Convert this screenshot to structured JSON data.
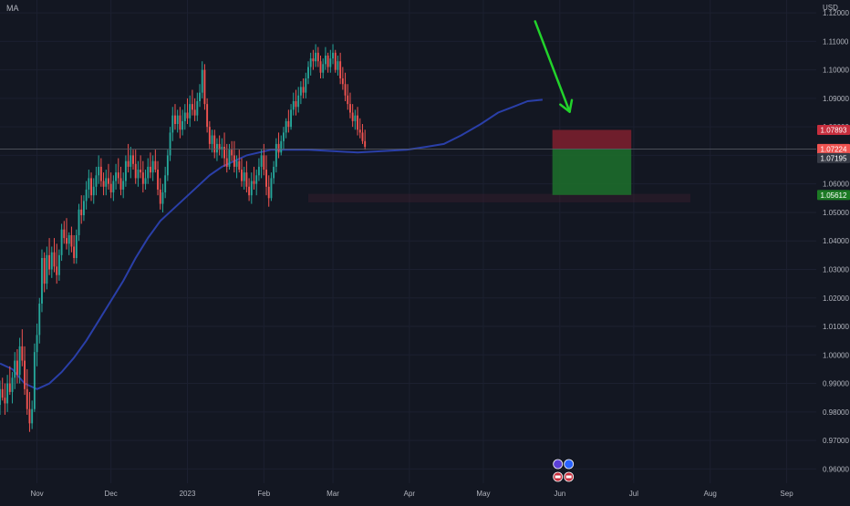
{
  "indicator_label": "MA",
  "currency_label": "USD",
  "colors": {
    "background": "#131722",
    "grid": "#1c2030",
    "up": "#26a69a",
    "down": "#ef5350",
    "ma": "#2a3fa8",
    "arrow": "#22d32b",
    "stop_zone": "#7a1f2e",
    "target_zone": "#1d6b2b",
    "axis_text": "#b2b5be"
  },
  "chart_data": {
    "type": "candlestick",
    "title": "",
    "xlabel": "",
    "ylabel": "",
    "ylim": [
      0.955,
      1.1245
    ],
    "y_ticks": [
      "1.12000",
      "1.11000",
      "1.10000",
      "1.09000",
      "1.08000",
      "1.07000",
      "1.06000",
      "1.05000",
      "1.04000",
      "1.03000",
      "1.02000",
      "1.01000",
      "1.00000",
      "0.99000",
      "0.98000",
      "0.97000",
      "0.96000"
    ],
    "x_ticks": [
      {
        "label": "Nov",
        "day": 0
      },
      {
        "label": "Dec",
        "day": 30
      },
      {
        "label": "2023",
        "day": 61
      },
      {
        "label": "Feb",
        "day": 92
      },
      {
        "label": "Mar",
        "day": 120
      },
      {
        "label": "Apr",
        "day": 151
      },
      {
        "label": "May",
        "day": 181
      },
      {
        "label": "Jun",
        "day": 212
      },
      {
        "label": "Jul",
        "day": 242
      },
      {
        "label": "Aug",
        "day": 273
      },
      {
        "label": "Sep",
        "day": 304
      }
    ],
    "x_range_days": [
      -15,
      316
    ],
    "price_labels": [
      {
        "value": "1.07893",
        "price": 1.07893,
        "color": "#c62e3d"
      },
      {
        "value": "1.07224",
        "price": 1.07224,
        "color": "#ef5350"
      },
      {
        "value": "1.07195",
        "price": 1.07195,
        "color": "#363a45"
      },
      {
        "value": "1.05612",
        "price": 1.05612,
        "color": "#1c7a24"
      }
    ],
    "position": {
      "type": "short",
      "entry": 1.07224,
      "stop": 1.07893,
      "target": 1.05612,
      "start_day": 209,
      "end_day": 241
    },
    "support_zone": {
      "from_day": 110,
      "to_day": 265,
      "low": 1.0535,
      "high": 1.0565
    },
    "arrow": {
      "from_day": 202,
      "from_price": 1.117,
      "to_day": 216,
      "to_price": 1.0853
    },
    "ma_series": [
      [
        -15,
        0.997
      ],
      [
        -10,
        0.995
      ],
      [
        -5,
        0.99
      ],
      [
        0,
        0.988
      ],
      [
        5,
        0.99
      ],
      [
        10,
        0.994
      ],
      [
        15,
        0.999
      ],
      [
        20,
        1.005
      ],
      [
        25,
        1.012
      ],
      [
        30,
        1.019
      ],
      [
        35,
        1.026
      ],
      [
        40,
        1.034
      ],
      [
        45,
        1.041
      ],
      [
        50,
        1.047
      ],
      [
        55,
        1.051
      ],
      [
        60,
        1.055
      ],
      [
        65,
        1.059
      ],
      [
        70,
        1.063
      ],
      [
        75,
        1.066
      ],
      [
        80,
        1.068
      ],
      [
        85,
        1.07
      ],
      [
        90,
        1.071
      ],
      [
        95,
        1.072
      ],
      [
        100,
        1.072
      ],
      [
        110,
        1.072
      ],
      [
        120,
        1.0715
      ],
      [
        130,
        1.071
      ],
      [
        140,
        1.0715
      ],
      [
        150,
        1.072
      ],
      [
        158,
        1.073
      ],
      [
        165,
        1.074
      ],
      [
        172,
        1.077
      ],
      [
        180,
        1.081
      ],
      [
        187,
        1.085
      ],
      [
        193,
        1.087
      ],
      [
        199,
        1.089
      ],
      [
        205,
        1.0895
      ]
    ],
    "candles": [
      [
        -15,
        0.9825,
        0.991,
        0.979,
        0.988
      ],
      [
        -14,
        0.988,
        0.992,
        0.984,
        0.985
      ],
      [
        -13,
        0.985,
        0.99,
        0.979,
        0.983
      ],
      [
        -12,
        0.983,
        0.993,
        0.98,
        0.99
      ],
      [
        -11,
        0.99,
        0.996,
        0.986,
        0.987
      ],
      [
        -10,
        0.987,
        0.994,
        0.983,
        0.992
      ],
      [
        -9,
        0.992,
        1.001,
        0.988,
        0.998
      ],
      [
        -8,
        0.998,
        1.002,
        0.99,
        0.993
      ],
      [
        -7,
        0.993,
        1.006,
        0.99,
        1.003
      ],
      [
        -6,
        1.003,
        1.009,
        0.996,
        0.998
      ],
      [
        -5,
        0.998,
        1.003,
        0.986,
        0.988
      ],
      [
        -4,
        0.988,
        0.995,
        0.979,
        0.981
      ],
      [
        -3,
        0.981,
        0.987,
        0.973,
        0.976
      ],
      [
        -2,
        0.976,
        0.984,
        0.974,
        0.981
      ],
      [
        -1,
        0.981,
        1.004,
        0.98,
        1.001
      ],
      [
        0,
        1.001,
        1.011,
        0.996,
        1.007
      ],
      [
        1,
        1.007,
        1.02,
        1.004,
        1.018
      ],
      [
        2,
        1.018,
        1.037,
        1.015,
        1.034
      ],
      [
        3,
        1.034,
        1.036,
        1.022,
        1.025
      ],
      [
        4,
        1.025,
        1.038,
        1.023,
        1.035
      ],
      [
        5,
        1.035,
        1.041,
        1.028,
        1.03
      ],
      [
        6,
        1.03,
        1.038,
        1.027,
        1.036
      ],
      [
        7,
        1.036,
        1.041,
        1.029,
        1.031
      ],
      [
        8,
        1.031,
        1.039,
        1.025,
        1.028
      ],
      [
        9,
        1.028,
        1.037,
        1.026,
        1.035
      ],
      [
        10,
        1.035,
        1.046,
        1.033,
        1.044
      ],
      [
        11,
        1.044,
        1.047,
        1.039,
        1.041
      ],
      [
        12,
        1.041,
        1.048,
        1.037,
        1.039
      ],
      [
        13,
        1.039,
        1.043,
        1.035,
        1.042
      ],
      [
        14,
        1.042,
        1.045,
        1.036,
        1.038
      ],
      [
        15,
        1.038,
        1.042,
        1.032,
        1.034
      ],
      [
        16,
        1.034,
        1.044,
        1.032,
        1.042
      ],
      [
        17,
        1.042,
        1.053,
        1.04,
        1.051
      ],
      [
        18,
        1.051,
        1.056,
        1.046,
        1.049
      ],
      [
        19,
        1.049,
        1.056,
        1.047,
        1.054
      ],
      [
        20,
        1.054,
        1.061,
        1.051,
        1.058
      ],
      [
        21,
        1.058,
        1.065,
        1.055,
        1.062
      ],
      [
        22,
        1.062,
        1.064,
        1.054,
        1.056
      ],
      [
        23,
        1.056,
        1.062,
        1.053,
        1.059
      ],
      [
        24,
        1.059,
        1.066,
        1.056,
        1.063
      ],
      [
        25,
        1.063,
        1.07,
        1.06,
        1.066
      ],
      [
        26,
        1.066,
        1.069,
        1.059,
        1.061
      ],
      [
        27,
        1.061,
        1.064,
        1.056,
        1.059
      ],
      [
        28,
        1.059,
        1.065,
        1.056,
        1.062
      ],
      [
        29,
        1.062,
        1.067,
        1.058,
        1.06
      ],
      [
        30,
        1.06,
        1.064,
        1.055,
        1.057
      ],
      [
        31,
        1.057,
        1.063,
        1.054,
        1.061
      ],
      [
        32,
        1.061,
        1.067,
        1.058,
        1.064
      ],
      [
        33,
        1.064,
        1.069,
        1.06,
        1.062
      ],
      [
        34,
        1.062,
        1.066,
        1.056,
        1.058
      ],
      [
        35,
        1.058,
        1.064,
        1.055,
        1.061
      ],
      [
        36,
        1.061,
        1.07,
        1.059,
        1.068
      ],
      [
        37,
        1.068,
        1.074,
        1.064,
        1.066
      ],
      [
        38,
        1.066,
        1.073,
        1.062,
        1.07
      ],
      [
        39,
        1.07,
        1.072,
        1.065,
        1.067
      ],
      [
        40,
        1.067,
        1.072,
        1.06,
        1.062
      ],
      [
        41,
        1.062,
        1.068,
        1.059,
        1.065
      ],
      [
        42,
        1.065,
        1.07,
        1.062,
        1.064
      ],
      [
        43,
        1.064,
        1.068,
        1.057,
        1.06
      ],
      [
        44,
        1.06,
        1.065,
        1.058,
        1.062
      ],
      [
        45,
        1.062,
        1.069,
        1.06,
        1.066
      ],
      [
        46,
        1.066,
        1.071,
        1.062,
        1.064
      ],
      [
        47,
        1.064,
        1.07,
        1.061,
        1.068
      ],
      [
        48,
        1.068,
        1.072,
        1.064,
        1.065
      ],
      [
        49,
        1.065,
        1.068,
        1.056,
        1.058
      ],
      [
        50,
        1.058,
        1.062,
        1.051,
        1.053
      ],
      [
        51,
        1.053,
        1.06,
        1.05,
        1.057
      ],
      [
        52,
        1.057,
        1.066,
        1.055,
        1.063
      ],
      [
        53,
        1.063,
        1.072,
        1.061,
        1.07
      ],
      [
        54,
        1.07,
        1.08,
        1.068,
        1.078
      ],
      [
        55,
        1.078,
        1.087,
        1.075,
        1.084
      ],
      [
        56,
        1.084,
        1.088,
        1.079,
        1.081
      ],
      [
        57,
        1.081,
        1.086,
        1.078,
        1.084
      ],
      [
        58,
        1.084,
        1.087,
        1.076,
        1.079
      ],
      [
        59,
        1.079,
        1.086,
        1.077,
        1.082
      ],
      [
        60,
        1.082,
        1.088,
        1.079,
        1.085
      ],
      [
        61,
        1.085,
        1.09,
        1.081,
        1.083
      ],
      [
        62,
        1.083,
        1.091,
        1.08,
        1.088
      ],
      [
        63,
        1.088,
        1.093,
        1.084,
        1.086
      ],
      [
        64,
        1.086,
        1.09,
        1.082,
        1.084
      ],
      [
        65,
        1.084,
        1.092,
        1.082,
        1.089
      ],
      [
        66,
        1.089,
        1.095,
        1.087,
        1.092
      ],
      [
        67,
        1.092,
        1.103,
        1.09,
        1.1
      ],
      [
        68,
        1.1,
        1.102,
        1.086,
        1.088
      ],
      [
        69,
        1.088,
        1.09,
        1.078,
        1.08
      ],
      [
        70,
        1.08,
        1.082,
        1.072,
        1.074
      ],
      [
        71,
        1.074,
        1.079,
        1.071,
        1.077
      ],
      [
        72,
        1.077,
        1.079,
        1.069,
        1.071
      ],
      [
        73,
        1.071,
        1.076,
        1.068,
        1.074
      ],
      [
        74,
        1.074,
        1.077,
        1.07,
        1.072
      ],
      [
        75,
        1.072,
        1.076,
        1.069,
        1.073
      ],
      [
        76,
        1.073,
        1.078,
        1.066,
        1.069
      ],
      [
        77,
        1.069,
        1.074,
        1.064,
        1.066
      ],
      [
        78,
        1.066,
        1.074,
        1.065,
        1.072
      ],
      [
        79,
        1.072,
        1.075,
        1.068,
        1.07
      ],
      [
        80,
        1.07,
        1.075,
        1.064,
        1.066
      ],
      [
        81,
        1.066,
        1.07,
        1.062,
        1.068
      ],
      [
        82,
        1.068,
        1.072,
        1.064,
        1.065
      ],
      [
        83,
        1.065,
        1.069,
        1.059,
        1.061
      ],
      [
        84,
        1.061,
        1.066,
        1.058,
        1.064
      ],
      [
        85,
        1.064,
        1.068,
        1.057,
        1.059
      ],
      [
        86,
        1.059,
        1.062,
        1.054,
        1.056
      ],
      [
        87,
        1.056,
        1.064,
        1.053,
        1.061
      ],
      [
        88,
        1.061,
        1.066,
        1.058,
        1.06
      ],
      [
        89,
        1.06,
        1.065,
        1.056,
        1.063
      ],
      [
        90,
        1.063,
        1.069,
        1.061,
        1.066
      ],
      [
        91,
        1.066,
        1.072,
        1.062,
        1.07
      ],
      [
        92,
        1.07,
        1.074,
        1.063,
        1.065
      ],
      [
        93,
        1.065,
        1.07,
        1.056,
        1.059
      ],
      [
        94,
        1.059,
        1.063,
        1.052,
        1.055
      ],
      [
        95,
        1.055,
        1.064,
        1.054,
        1.062
      ],
      [
        96,
        1.062,
        1.068,
        1.06,
        1.066
      ],
      [
        97,
        1.066,
        1.076,
        1.064,
        1.074
      ],
      [
        98,
        1.074,
        1.078,
        1.069,
        1.071
      ],
      [
        99,
        1.071,
        1.077,
        1.07,
        1.075
      ],
      [
        100,
        1.075,
        1.08,
        1.072,
        1.078
      ],
      [
        101,
        1.078,
        1.083,
        1.076,
        1.082
      ],
      [
        102,
        1.082,
        1.086,
        1.078,
        1.08
      ],
      [
        103,
        1.08,
        1.088,
        1.079,
        1.086
      ],
      [
        104,
        1.086,
        1.092,
        1.084,
        1.089
      ],
      [
        105,
        1.089,
        1.093,
        1.084,
        1.087
      ],
      [
        106,
        1.087,
        1.094,
        1.085,
        1.091
      ],
      [
        107,
        1.091,
        1.096,
        1.088,
        1.094
      ],
      [
        108,
        1.094,
        1.097,
        1.09,
        1.092
      ],
      [
        109,
        1.092,
        1.099,
        1.09,
        1.097
      ],
      [
        110,
        1.097,
        1.103,
        1.095,
        1.101
      ],
      [
        111,
        1.101,
        1.106,
        1.098,
        1.104
      ],
      [
        112,
        1.104,
        1.107,
        1.1,
        1.103
      ],
      [
        113,
        1.103,
        1.109,
        1.101,
        1.106
      ],
      [
        114,
        1.106,
        1.108,
        1.101,
        1.103
      ],
      [
        115,
        1.103,
        1.105,
        1.097,
        1.099
      ],
      [
        116,
        1.099,
        1.104,
        1.097,
        1.102
      ],
      [
        117,
        1.102,
        1.108,
        1.1,
        1.105
      ],
      [
        118,
        1.105,
        1.106,
        1.099,
        1.101
      ],
      [
        119,
        1.101,
        1.107,
        1.099,
        1.104
      ],
      [
        120,
        1.104,
        1.109,
        1.102,
        1.106
      ],
      [
        121,
        1.106,
        1.107,
        1.099,
        1.1
      ],
      [
        122,
        1.1,
        1.105,
        1.098,
        1.103
      ],
      [
        123,
        1.103,
        1.106,
        1.095,
        1.097
      ],
      [
        124,
        1.097,
        1.101,
        1.093,
        1.095
      ],
      [
        125,
        1.095,
        1.099,
        1.089,
        1.091
      ],
      [
        126,
        1.091,
        1.095,
        1.086,
        1.088
      ],
      [
        127,
        1.088,
        1.092,
        1.083,
        1.085
      ],
      [
        128,
        1.085,
        1.088,
        1.08,
        1.082
      ],
      [
        129,
        1.082,
        1.086,
        1.079,
        1.084
      ],
      [
        130,
        1.084,
        1.087,
        1.077,
        1.079
      ],
      [
        131,
        1.079,
        1.083,
        1.076,
        1.078
      ],
      [
        132,
        1.078,
        1.081,
        1.074,
        1.075
      ],
      [
        133,
        1.075,
        1.079,
        1.072,
        1.073
      ]
    ]
  }
}
